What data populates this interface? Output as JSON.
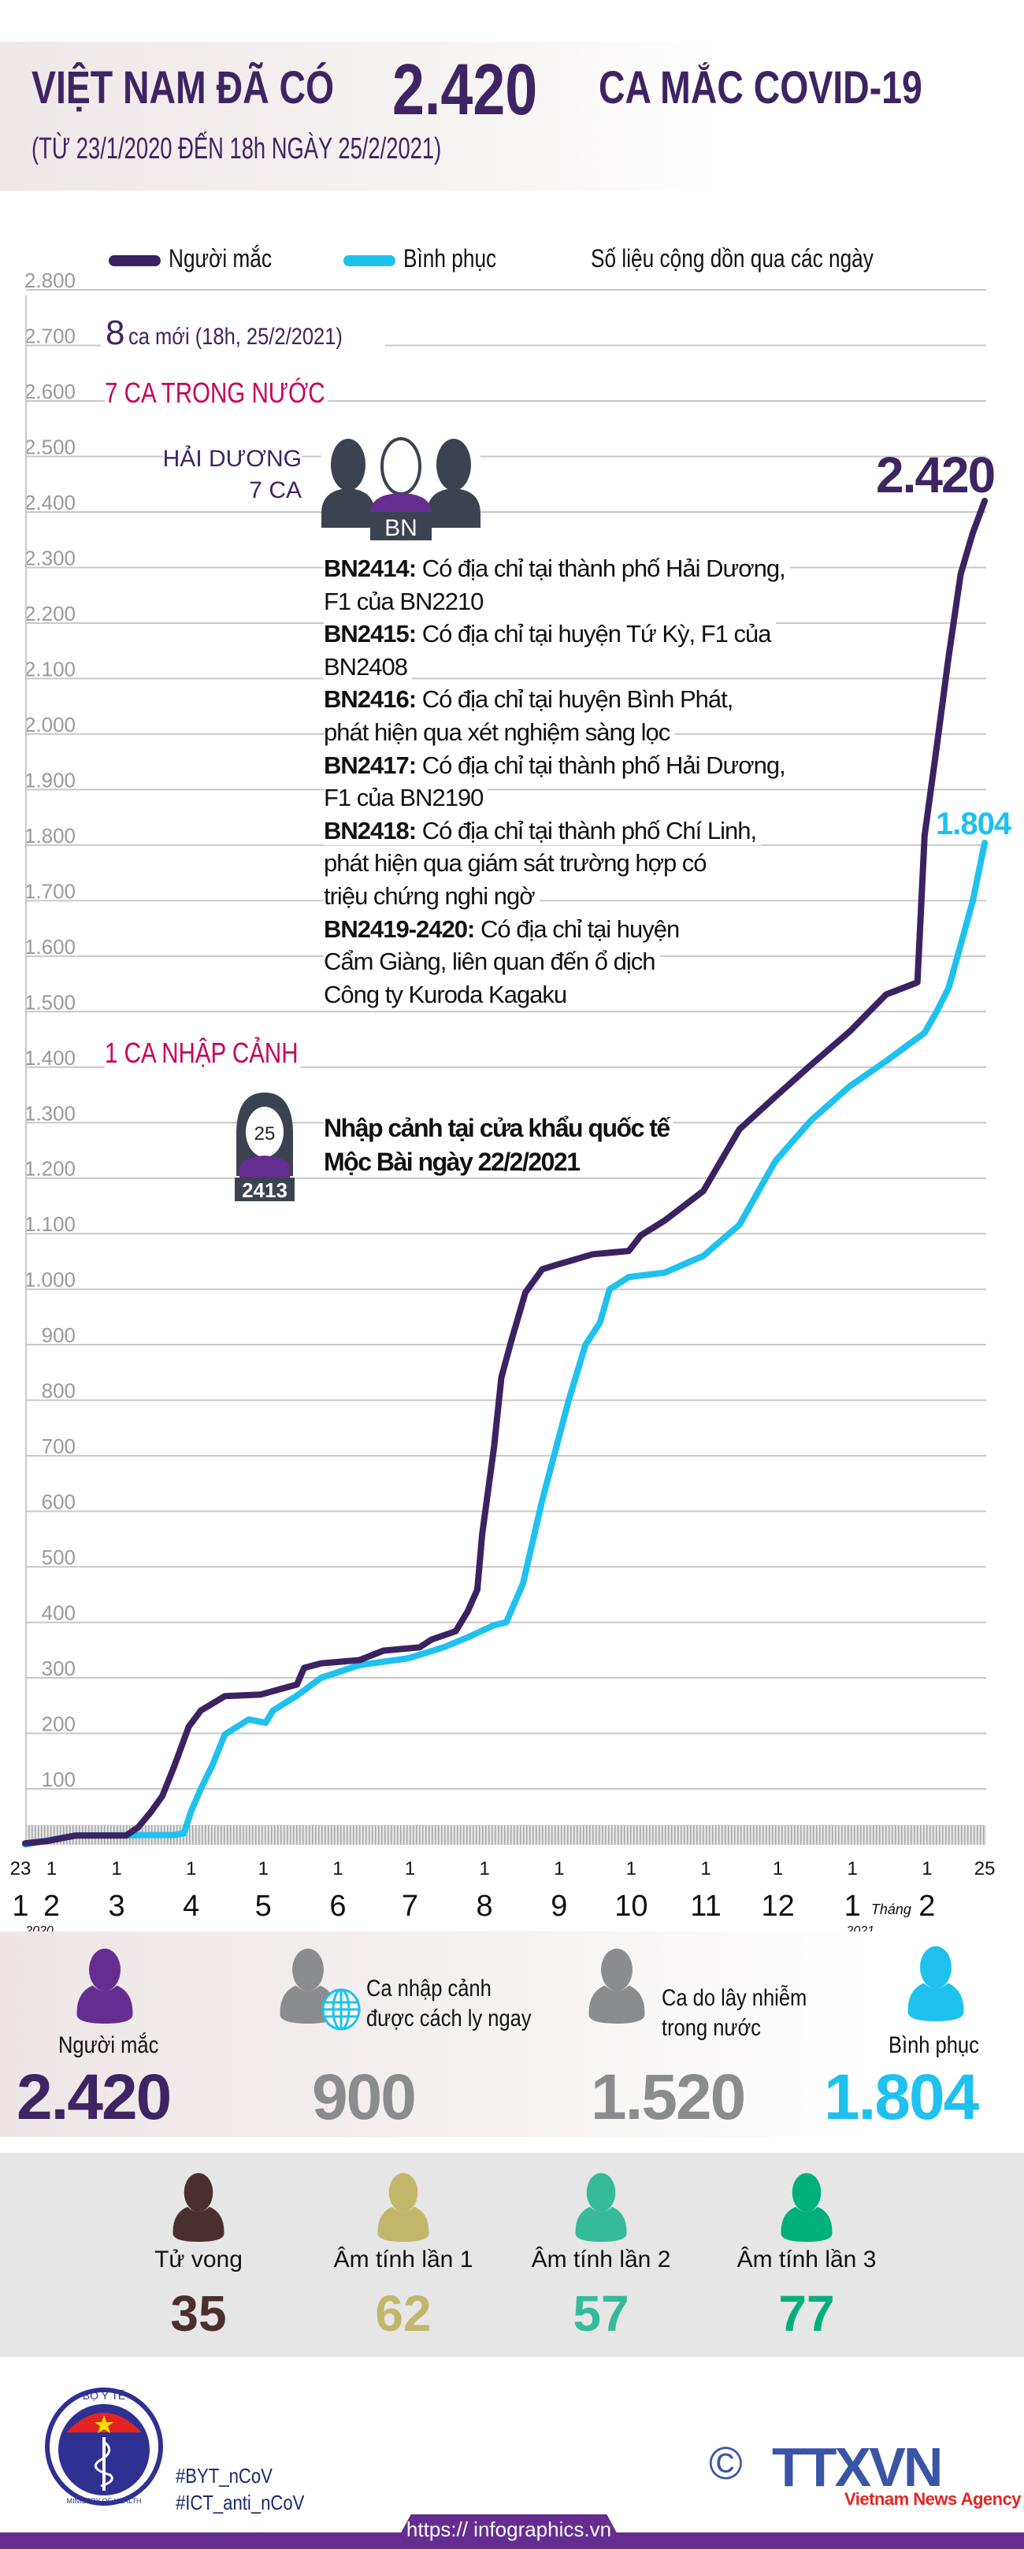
{
  "header": {
    "title_prefix": "VIỆT NAM ĐÃ CÓ",
    "title_number": "2.420",
    "title_suffix": "CA MẮC COVID-19",
    "subtitle": "(TỪ 23/1/2020 ĐẾN 18h NGÀY 25/2/2021)"
  },
  "legend": {
    "cases_label": "Người mắc",
    "recovered_label": "Bình phục",
    "note": "Số liệu cộng dồn qua các ngày"
  },
  "annotations": {
    "new_cases_number": "8",
    "new_cases_text": "ca mới (18h, 25/2/2021)",
    "domestic_heading": "7 CA TRONG NƯỚC",
    "province": "HẢI DƯƠNG",
    "province_count": "7 CA",
    "group_icon_label": "BN",
    "cases": [
      {
        "id": "BN2414:",
        "lines": [
          "Có địa chỉ tại thành phố Hải Dương,",
          "F1 của BN2210"
        ]
      },
      {
        "id": "BN2415:",
        "lines": [
          "Có địa chỉ tại huyện Tứ Kỳ, F1 của",
          "BN2408"
        ]
      },
      {
        "id": "BN2416:",
        "lines": [
          "Có địa chỉ tại huyện Bình Phát,",
          "phát hiện qua xét nghiệm sàng lọc"
        ]
      },
      {
        "id": "BN2417:",
        "lines": [
          "Có địa chỉ tại thành phố Hải Dương,",
          "F1 của BN2190"
        ]
      },
      {
        "id": "BN2418:",
        "lines": [
          "Có địa chỉ tại thành phố Chí Linh,",
          "phát hiện qua giám sát trường hợp có",
          "triệu chứng nghi ngờ"
        ]
      },
      {
        "id": "BN2419-2420:",
        "lines": [
          "Có địa chỉ tại huyện",
          "Cẩm Giàng, liên quan đến ổ dịch",
          "Công ty Kuroda Kagaku"
        ]
      }
    ],
    "imported_heading": "1 CA NHẬP CẢNH",
    "imported_age": "25",
    "imported_id": "2413",
    "imported_text_1": "Nhập cảnh tại cửa khẩu quốc tế",
    "imported_text_2": "Mộc Bài ngày 22/2/2021",
    "end_cases_label": "2.420",
    "end_recovered_label": "1.804"
  },
  "chart_data": {
    "type": "line",
    "title": "",
    "xlabel": "",
    "ylabel": "",
    "ylim": [
      0,
      2800
    ],
    "xlim": [
      "2020-01-23",
      "2021-02-25"
    ],
    "grid": true,
    "legend_placement": "top",
    "y_ticks": [
      "100",
      "200",
      "300",
      "400",
      "500",
      "600",
      "700",
      "800",
      "900",
      "1.000",
      "1.100",
      "1.200",
      "1.300",
      "1.400",
      "1.500",
      "1.600",
      "1.700",
      "1.800",
      "1.900",
      "2.000",
      "2.100",
      "2.200",
      "2.300",
      "2.400",
      "2.500",
      "2.600",
      "2.700",
      "2.800"
    ],
    "x_day_ticks": [
      {
        "date": "2020-01-23",
        "label": "23"
      },
      {
        "date": "2020-02-01",
        "label": "1"
      },
      {
        "date": "2020-03-01",
        "label": "1"
      },
      {
        "date": "2020-04-01",
        "label": "1"
      },
      {
        "date": "2020-05-01",
        "label": "1"
      },
      {
        "date": "2020-06-01",
        "label": "1"
      },
      {
        "date": "2020-07-01",
        "label": "1"
      },
      {
        "date": "2020-08-01",
        "label": "1"
      },
      {
        "date": "2020-09-01",
        "label": "1"
      },
      {
        "date": "2020-10-01",
        "label": "1"
      },
      {
        "date": "2020-11-01",
        "label": "1"
      },
      {
        "date": "2020-12-01",
        "label": "1"
      },
      {
        "date": "2021-01-01",
        "label": "1"
      },
      {
        "date": "2021-02-01",
        "label": "1"
      },
      {
        "date": "2021-02-25",
        "label": "25"
      }
    ],
    "x_month_labels": [
      {
        "date": "2020-01-23",
        "label": "1"
      },
      {
        "date": "2020-02-01",
        "label": "2"
      },
      {
        "date": "2020-03-01",
        "label": "3"
      },
      {
        "date": "2020-04-01",
        "label": "4"
      },
      {
        "date": "2020-05-01",
        "label": "5"
      },
      {
        "date": "2020-06-01",
        "label": "6"
      },
      {
        "date": "2020-07-01",
        "label": "7"
      },
      {
        "date": "2020-08-01",
        "label": "8"
      },
      {
        "date": "2020-09-01",
        "label": "9"
      },
      {
        "date": "2020-10-01",
        "label": "10"
      },
      {
        "date": "2020-11-01",
        "label": "11"
      },
      {
        "date": "2020-12-01",
        "label": "12"
      },
      {
        "date": "2021-01-01",
        "label": "1"
      },
      {
        "date": "2021-02-01",
        "label": "2"
      }
    ],
    "month_word": "Tháng",
    "year_labels": [
      {
        "date": "2020-01-23",
        "label": "2020"
      },
      {
        "date": "2021-01-01",
        "label": "2021"
      }
    ],
    "series": [
      {
        "name": "Người mắc",
        "color": "#3b2262",
        "points": [
          [
            "2020-01-23",
            2
          ],
          [
            "2020-02-01",
            6
          ],
          [
            "2020-02-13",
            16
          ],
          [
            "2020-03-05",
            16
          ],
          [
            "2020-03-10",
            31
          ],
          [
            "2020-03-15",
            57
          ],
          [
            "2020-03-20",
            87
          ],
          [
            "2020-03-25",
            141
          ],
          [
            "2020-03-31",
            212
          ],
          [
            "2020-04-05",
            241
          ],
          [
            "2020-04-15",
            267
          ],
          [
            "2020-04-30",
            270
          ],
          [
            "2020-05-15",
            288
          ],
          [
            "2020-05-18",
            318
          ],
          [
            "2020-05-25",
            326
          ],
          [
            "2020-06-10",
            332
          ],
          [
            "2020-06-20",
            349
          ],
          [
            "2020-07-05",
            355
          ],
          [
            "2020-07-10",
            369
          ],
          [
            "2020-07-20",
            384
          ],
          [
            "2020-07-25",
            420
          ],
          [
            "2020-07-29",
            459
          ],
          [
            "2020-07-31",
            558
          ],
          [
            "2020-08-05",
            717
          ],
          [
            "2020-08-08",
            841
          ],
          [
            "2020-08-12",
            905
          ],
          [
            "2020-08-18",
            994
          ],
          [
            "2020-08-25",
            1036
          ],
          [
            "2020-08-31",
            1044
          ],
          [
            "2020-09-15",
            1063
          ],
          [
            "2020-09-30",
            1069
          ],
          [
            "2020-10-05",
            1097
          ],
          [
            "2020-10-15",
            1124
          ],
          [
            "2020-10-31",
            1177
          ],
          [
            "2020-11-15",
            1288
          ],
          [
            "2020-11-30",
            1347
          ],
          [
            "2020-12-15",
            1405
          ],
          [
            "2020-12-31",
            1465
          ],
          [
            "2021-01-15",
            1531
          ],
          [
            "2021-01-27",
            1551
          ],
          [
            "2021-01-28",
            1553
          ],
          [
            "2021-01-31",
            1817
          ],
          [
            "2021-02-05",
            1976
          ],
          [
            "2021-02-10",
            2140
          ],
          [
            "2021-02-15",
            2288
          ],
          [
            "2021-02-20",
            2362
          ],
          [
            "2021-02-25",
            2420
          ]
        ]
      },
      {
        "name": "Bình phục",
        "color": "#1fc1ee",
        "points": [
          [
            "2020-01-23",
            0
          ],
          [
            "2020-02-13",
            16
          ],
          [
            "2020-03-25",
            17
          ],
          [
            "2020-03-29",
            20
          ],
          [
            "2020-04-01",
            60
          ],
          [
            "2020-04-05",
            100
          ],
          [
            "2020-04-10",
            144
          ],
          [
            "2020-04-15",
            198
          ],
          [
            "2020-04-25",
            225
          ],
          [
            "2020-05-02",
            219
          ],
          [
            "2020-05-05",
            241
          ],
          [
            "2020-05-15",
            268
          ],
          [
            "2020-05-25",
            300
          ],
          [
            "2020-06-10",
            323
          ],
          [
            "2020-06-30",
            335
          ],
          [
            "2020-07-15",
            355
          ],
          [
            "2020-07-25",
            373
          ],
          [
            "2020-08-05",
            395
          ],
          [
            "2020-08-10",
            400
          ],
          [
            "2020-08-17",
            470
          ],
          [
            "2020-08-25",
            620
          ],
          [
            "2020-09-05",
            800
          ],
          [
            "2020-09-12",
            900
          ],
          [
            "2020-09-18",
            940
          ],
          [
            "2020-09-22",
            1000
          ],
          [
            "2020-09-30",
            1022
          ],
          [
            "2020-10-15",
            1030
          ],
          [
            "2020-10-31",
            1060
          ],
          [
            "2020-11-15",
            1116
          ],
          [
            "2020-11-30",
            1231
          ],
          [
            "2020-12-15",
            1305
          ],
          [
            "2020-12-31",
            1366
          ],
          [
            "2021-01-15",
            1411
          ],
          [
            "2021-01-31",
            1462
          ],
          [
            "2021-02-05",
            1500
          ],
          [
            "2021-02-10",
            1543
          ],
          [
            "2021-02-15",
            1620
          ],
          [
            "2021-02-20",
            1699
          ],
          [
            "2021-02-25",
            1804
          ]
        ]
      }
    ]
  },
  "stats": [
    {
      "label": "Người mắc",
      "value": "2.420",
      "color": "#652d90",
      "num_color": "#3d2462"
    },
    {
      "label_1": "Ca nhập cảnh",
      "label_2": "được cách ly ngay",
      "value": "900",
      "color": "#8a8c8e"
    },
    {
      "label_1": "Ca do lây nhiễm",
      "label_2": "trong nước",
      "value": "1.520",
      "color": "#8a8c8e"
    },
    {
      "label": "Bình phục",
      "value": "1.804",
      "color": "#1fc1ee"
    }
  ],
  "outcomes": [
    {
      "label": "Tử vong",
      "value": "35",
      "color": "#4b2f2f"
    },
    {
      "label": "Âm tính lần 1",
      "value": "62",
      "color": "#c2b66a"
    },
    {
      "label": "Âm tính lần 2",
      "value": "57",
      "color": "#36bb99"
    },
    {
      "label": "Âm tính lần 3",
      "value": "77",
      "color": "#00b07a"
    }
  ],
  "footer": {
    "moh_logo_top": "BỘ Y TẾ",
    "moh_logo_bottom": "MINISTRY OF HEALTH",
    "hashtag_1": "#BYT_nCoV",
    "hashtag_2": "#ICT_anti_nCoV",
    "copyright_symbol": "©",
    "agency_logo": "TTXVN",
    "agency_name": "Vietnam News Agency",
    "url": "https:// infographics.vn"
  }
}
